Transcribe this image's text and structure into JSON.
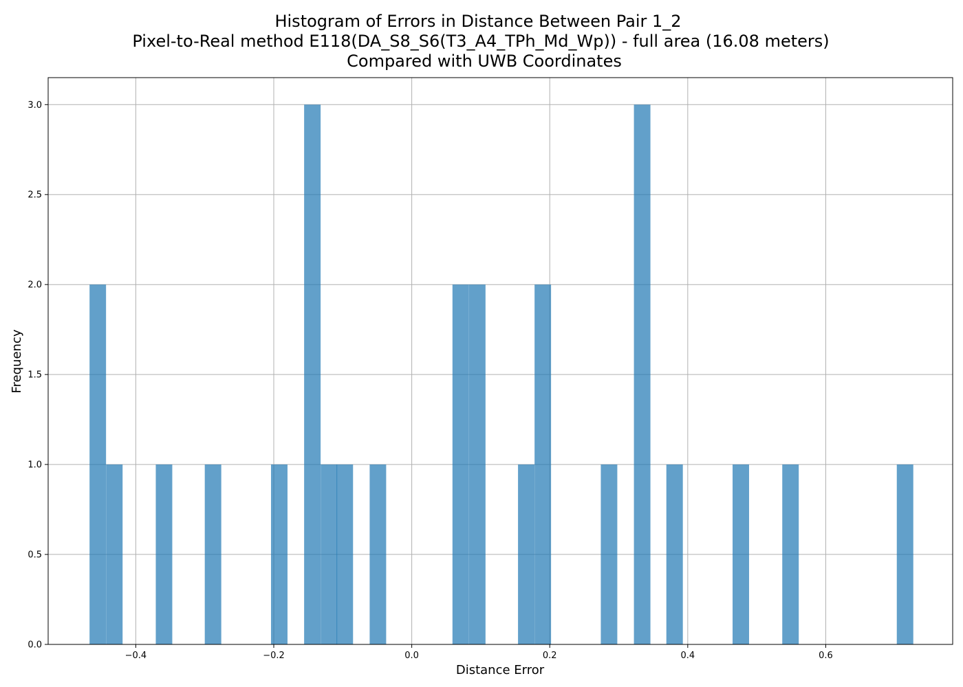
{
  "chart_data": {
    "type": "bar",
    "title_lines": [
      "Histogram of Errors in Distance Between Pair 1_2",
      "Pixel-to-Real method E118(DA_S8_S6(T3_A4_TPh_Md_Wp)) - full area (16.08 meters)",
      "Compared with UWB Coordinates"
    ],
    "xlabel": "Distance Error",
    "ylabel": "Frequency",
    "xlim": [
      -0.527,
      0.784
    ],
    "ylim": [
      0,
      3.15
    ],
    "bin_width": 0.0239,
    "xticks": [
      {
        "value": -0.4,
        "label": "−0.4"
      },
      {
        "value": -0.2,
        "label": "−0.2"
      },
      {
        "value": 0.0,
        "label": "0.0"
      },
      {
        "value": 0.2,
        "label": "0.2"
      },
      {
        "value": 0.4,
        "label": "0.4"
      },
      {
        "value": 0.6,
        "label": "0.6"
      }
    ],
    "yticks": [
      {
        "value": 0.0,
        "label": "0.0"
      },
      {
        "value": 0.5,
        "label": "0.5"
      },
      {
        "value": 1.0,
        "label": "1.0"
      },
      {
        "value": 1.5,
        "label": "1.5"
      },
      {
        "value": 2.0,
        "label": "2.0"
      },
      {
        "value": 2.5,
        "label": "2.5"
      },
      {
        "value": 3.0,
        "label": "3.0"
      }
    ],
    "bins": [
      {
        "start": -0.467,
        "count": 2
      },
      {
        "start": -0.443,
        "count": 1
      },
      {
        "start": -0.371,
        "count": 1
      },
      {
        "start": -0.3,
        "count": 1
      },
      {
        "start": -0.204,
        "count": 1
      },
      {
        "start": -0.156,
        "count": 3
      },
      {
        "start": -0.132,
        "count": 1
      },
      {
        "start": -0.109,
        "count": 1
      },
      {
        "start": -0.061,
        "count": 1
      },
      {
        "start": 0.059,
        "count": 2
      },
      {
        "start": 0.083,
        "count": 2
      },
      {
        "start": 0.154,
        "count": 1
      },
      {
        "start": 0.178,
        "count": 2
      },
      {
        "start": 0.274,
        "count": 1
      },
      {
        "start": 0.322,
        "count": 3
      },
      {
        "start": 0.369,
        "count": 1
      },
      {
        "start": 0.465,
        "count": 1
      },
      {
        "start": 0.537,
        "count": 1
      },
      {
        "start": 0.703,
        "count": 1
      }
    ],
    "bar_color": "#1f77b4",
    "bar_opacity": 0.7,
    "grid": true
  }
}
